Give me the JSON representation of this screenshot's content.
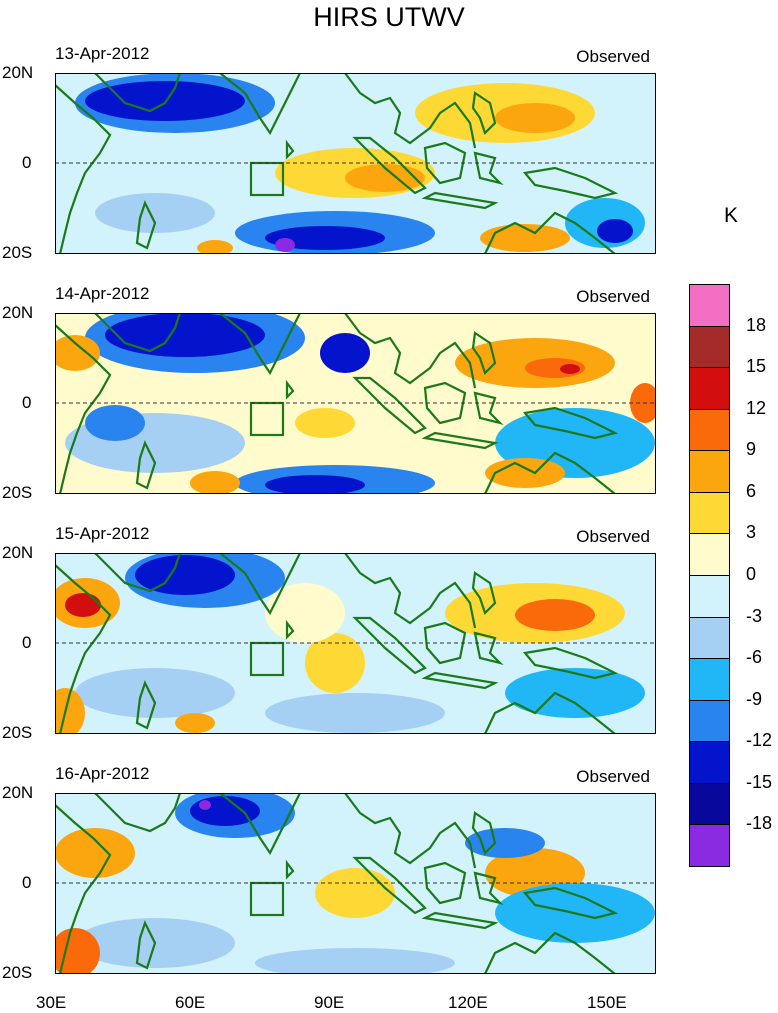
{
  "title": "HIRS UTWV",
  "units": "K",
  "panels": [
    {
      "date": "13-Apr-2012",
      "label": "Observed"
    },
    {
      "date": "14-Apr-2012",
      "label": "Observed"
    },
    {
      "date": "15-Apr-2012",
      "label": "Observed"
    },
    {
      "date": "16-Apr-2012",
      "label": "Observed"
    }
  ],
  "y_axis_labels": [
    "20N",
    "0",
    "20S"
  ],
  "x_axis_labels": [
    "30E",
    "60E",
    "90E",
    "120E",
    "150E"
  ],
  "colorbar": {
    "labels": [
      "18",
      "15",
      "12",
      "9",
      "6",
      "3",
      "0",
      "-3",
      "-6",
      "-9",
      "-12",
      "-15",
      "-18"
    ],
    "colors": [
      "#f36fc4",
      "#a52a2a",
      "#d20e0e",
      "#fa6a0a",
      "#fba60f",
      "#fed936",
      "#fffbcc",
      "#d2f3fb",
      "#a6cff4",
      "#21b6f6",
      "#2a84ef",
      "#0414cc",
      "#08089c",
      "#8a2be2"
    ]
  },
  "chart_data": {
    "type": "heatmap",
    "title": "HIRS UTWV",
    "units": "K",
    "x_range": [
      "30E",
      "160E"
    ],
    "y_range": [
      "20S",
      "20N"
    ],
    "levels": [
      -18,
      -15,
      -12,
      -9,
      -6,
      -3,
      0,
      3,
      6,
      9,
      12,
      15,
      18
    ],
    "panels": [
      "13-Apr-2012",
      "14-Apr-2012",
      "15-Apr-2012",
      "16-Apr-2012"
    ]
  }
}
